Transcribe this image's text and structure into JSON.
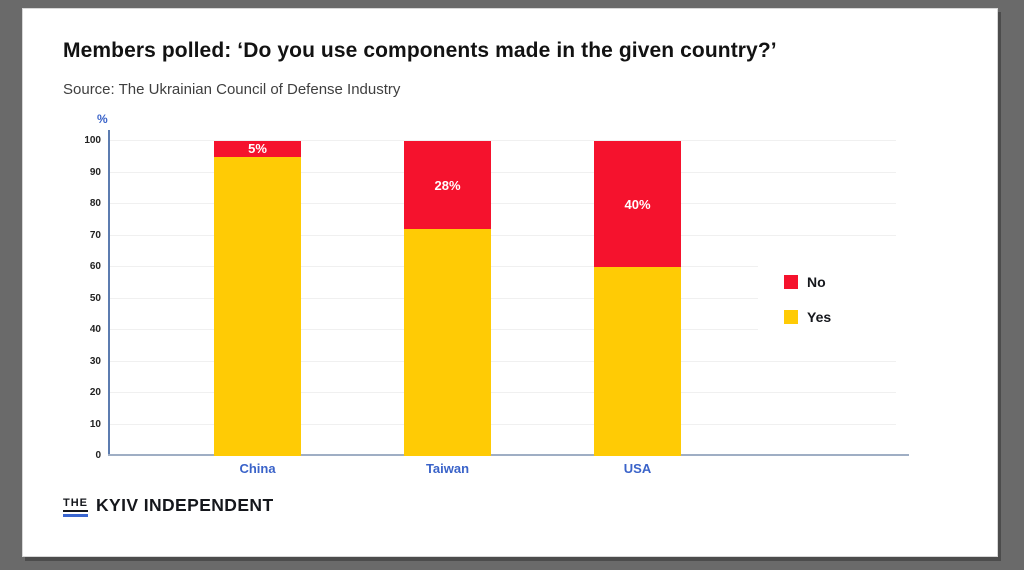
{
  "header": {
    "title": "Members polled: ‘Do you use components made in the given country?’",
    "source": "Source: The Ukrainian Council of Defense Industry"
  },
  "chart_data": {
    "type": "bar",
    "stacked": true,
    "categories": [
      "China",
      "Taiwan",
      "USA"
    ],
    "series": [
      {
        "name": "Yes",
        "color": "#FFCB05",
        "values": [
          95,
          72,
          60
        ]
      },
      {
        "name": "No",
        "color": "#F5122D",
        "values": [
          5,
          28,
          40
        ]
      }
    ],
    "bar_labels": [
      "5%",
      "28%",
      "40%"
    ],
    "ylabel": "%",
    "ylim": [
      0,
      100
    ],
    "ytick_step": 10,
    "grid": true,
    "legend_position": "right",
    "legend": [
      {
        "label": "No",
        "color": "#F5122D"
      },
      {
        "label": "Yes",
        "color": "#FFCB05"
      }
    ]
  },
  "colors": {
    "background": "#6A6A6A",
    "card": "#ffffff",
    "axis_y": "#5C7CB0",
    "axis_x": "#9FAEC4",
    "grid": "#F0F0F0",
    "category_text": "#3A63C9",
    "bar_label_text": "#ffffff"
  },
  "footer": {
    "logo_the": "THE",
    "logo_name": "KYIV INDEPENDENT"
  }
}
